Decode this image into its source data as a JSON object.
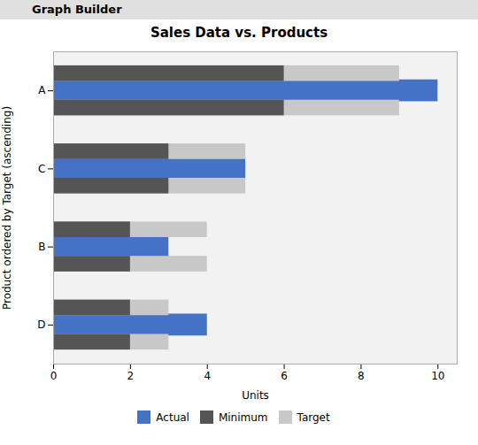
{
  "chart_data": {
    "type": "bar",
    "orientation": "horizontal",
    "title": "Sales Data vs. Products",
    "annotations": [
      "Graph Builder"
    ],
    "xlabel": "Units",
    "ylabel": "Product ordered by Target (ascending)",
    "categories": [
      "D",
      "B",
      "C",
      "A"
    ],
    "series": [
      {
        "name": "Actual",
        "color": "#4472C4",
        "values": [
          4,
          3,
          5,
          10
        ]
      },
      {
        "name": "Minimum",
        "color": "#555555",
        "values": [
          2,
          2,
          3,
          6
        ]
      },
      {
        "name": "Target",
        "color": "#C8C8C8",
        "values": [
          3,
          4,
          5,
          9
        ]
      }
    ],
    "xlim": [
      0,
      10.5
    ],
    "xticks": [
      0,
      2,
      4,
      6,
      8,
      10
    ],
    "grid": false,
    "legend": "bottom",
    "stacked": false
  }
}
